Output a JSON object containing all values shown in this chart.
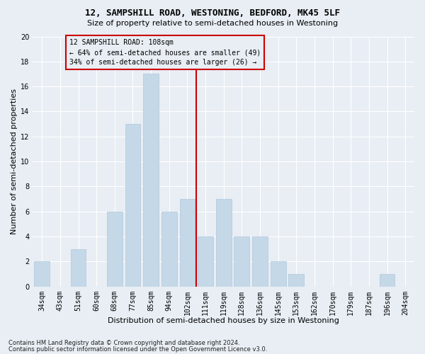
{
  "title1": "12, SAMPSHILL ROAD, WESTONING, BEDFORD, MK45 5LF",
  "title2": "Size of property relative to semi-detached houses in Westoning",
  "xlabel": "Distribution of semi-detached houses by size in Westoning",
  "ylabel": "Number of semi-detached properties",
  "categories": [
    "34sqm",
    "43sqm",
    "51sqm",
    "60sqm",
    "68sqm",
    "77sqm",
    "85sqm",
    "94sqm",
    "102sqm",
    "111sqm",
    "119sqm",
    "128sqm",
    "136sqm",
    "145sqm",
    "153sqm",
    "162sqm",
    "170sqm",
    "179sqm",
    "187sqm",
    "196sqm",
    "204sqm"
  ],
  "values": [
    2,
    0,
    3,
    0,
    6,
    13,
    17,
    6,
    7,
    4,
    7,
    4,
    4,
    2,
    1,
    0,
    0,
    0,
    0,
    1,
    0
  ],
  "bar_color": "#c5d8e8",
  "bar_edgecolor": "#aec8dc",
  "vline_x_idx": 8.5,
  "vline_color": "#cc0000",
  "annotation_box_text": "12 SAMPSHILL ROAD: 108sqm\n← 64% of semi-detached houses are smaller (49)\n34% of semi-detached houses are larger (26) →",
  "annotation_box_color": "#cc0000",
  "ylim": [
    0,
    20
  ],
  "yticks": [
    0,
    2,
    4,
    6,
    8,
    10,
    12,
    14,
    16,
    18,
    20
  ],
  "footnote1": "Contains HM Land Registry data © Crown copyright and database right 2024.",
  "footnote2": "Contains public sector information licensed under the Open Government Licence v3.0.",
  "background_color": "#e8eef4",
  "grid_color": "#ffffff",
  "title1_fontsize": 9,
  "title2_fontsize": 8,
  "ylabel_fontsize": 8,
  "xlabel_fontsize": 8,
  "tick_fontsize": 7,
  "annot_fontsize": 7,
  "footnote_fontsize": 6
}
